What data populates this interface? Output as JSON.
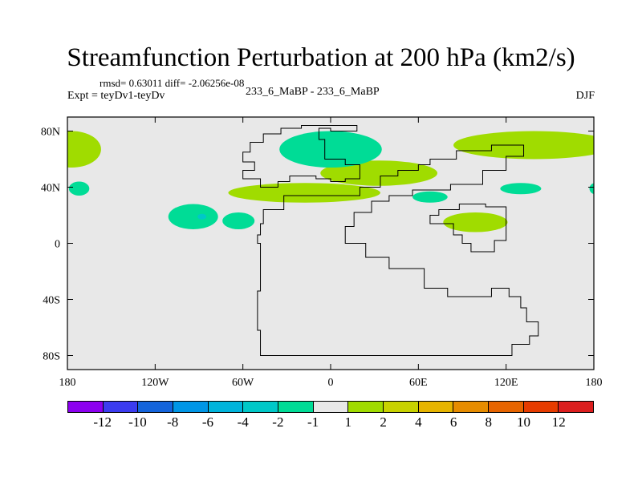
{
  "title": "Streamfunction Perturbation at 200 hPa (km2/s)",
  "stats": "rmsd= 0.63011  diff= -2.06256e-08",
  "experiment_label": "Expt = teyDv1-teyDv",
  "experiment_name": "233_6_MaBP - 233_6_MaBP",
  "season": "DJF",
  "map": {
    "lat_range": [
      -90,
      90
    ],
    "lon_range": [
      -180,
      180
    ],
    "background_color": "#e8e8e8",
    "y_ticks": [
      {
        "lat": 80,
        "label": "80N"
      },
      {
        "lat": 40,
        "label": "40N"
      },
      {
        "lat": 0,
        "label": "0"
      },
      {
        "lat": -40,
        "label": "40S"
      },
      {
        "lat": -80,
        "label": "80S"
      }
    ],
    "x_ticks": [
      {
        "lon": -180,
        "label": "180"
      },
      {
        "lon": -120,
        "label": "120W"
      },
      {
        "lon": -60,
        "label": "60W"
      },
      {
        "lon": 0,
        "label": "0"
      },
      {
        "lon": 60,
        "label": "60E"
      },
      {
        "lon": 120,
        "label": "120E"
      },
      {
        "lon": 180,
        "label": "180"
      }
    ],
    "regions": [
      {
        "name": "arctic-west-positive",
        "level": "1 to 2",
        "color": "#a0dc00",
        "lon": -177,
        "lat": 67,
        "rlon": 20,
        "rlat": 13
      },
      {
        "name": "arctic-east-positive",
        "level": "1 to 2",
        "color": "#a0dc00",
        "lon": 139,
        "lat": 70,
        "rlon": 55,
        "rlat": 10
      },
      {
        "name": "eurasia-ridge-positive",
        "level": "1 to 2",
        "color": "#a0dc00",
        "lon": 33,
        "lat": 50,
        "rlon": 40,
        "rlat": 9
      },
      {
        "name": "atlantic-band-positive",
        "level": "1 to 2",
        "color": "#a0dc00",
        "lon": -18,
        "lat": 36,
        "rlon": 52,
        "rlat": 7
      },
      {
        "name": "north-africa-arabia-positive",
        "level": "1 to 2",
        "color": "#a0dc00",
        "lon": 99,
        "lat": 15,
        "rlon": 22,
        "rlat": 7
      },
      {
        "name": "greenland-trough-negative",
        "level": "-1 to -2",
        "color": "#00dc96",
        "lon": 0,
        "lat": 67,
        "rlon": 35,
        "rlat": 13
      },
      {
        "name": "pacific-west-negative",
        "level": "-1 to -2",
        "color": "#00dc96",
        "lon": -172,
        "lat": 39,
        "rlon": 7,
        "rlat": 5
      },
      {
        "name": "east-pacific-negative",
        "level": "-1 to -2",
        "color": "#00dc96",
        "lon": -94,
        "lat": 19,
        "rlon": 17,
        "rlat": 9
      },
      {
        "name": "caribbean-negative",
        "level": "-1 to -2",
        "color": "#00dc96",
        "lon": -63,
        "lat": 16,
        "rlon": 11,
        "rlat": 6
      },
      {
        "name": "central-asia-negative",
        "level": "-1 to -2",
        "color": "#00dc96",
        "lon": 68,
        "lat": 33,
        "rlon": 12,
        "rlat": 4
      },
      {
        "name": "east-asia-negative",
        "level": "-1 to -2",
        "color": "#00dc96",
        "lon": 130,
        "lat": 39,
        "rlon": 14,
        "rlat": 4
      },
      {
        "name": "dateline-negative",
        "level": "-1 to -2",
        "color": "#00dc96",
        "lon": 181,
        "lat": 39,
        "rlon": 4,
        "rlat": 4
      },
      {
        "name": "east-pacific-core-negative",
        "level": "-2 to -4",
        "color": "#00c8c8",
        "lon": -88,
        "lat": 19,
        "rlon": 3,
        "rlat": 2
      }
    ],
    "continents": [
      {
        "name": "north-landmass",
        "points": [
          [
            -48,
            40
          ],
          [
            -48,
            46
          ],
          [
            -60,
            46
          ],
          [
            -60,
            52
          ],
          [
            -52,
            52
          ],
          [
            -52,
            58
          ],
          [
            -60,
            58
          ],
          [
            -60,
            65
          ],
          [
            -55,
            65
          ],
          [
            -55,
            72
          ],
          [
            -46,
            72
          ],
          [
            -46,
            78
          ],
          [
            -34,
            78
          ],
          [
            -34,
            82
          ],
          [
            -20,
            82
          ],
          [
            -20,
            84
          ],
          [
            18,
            84
          ],
          [
            18,
            80
          ],
          [
            0,
            80
          ],
          [
            0,
            82
          ],
          [
            -8,
            82
          ],
          [
            -8,
            74
          ],
          [
            -4,
            74
          ],
          [
            -4,
            60
          ],
          [
            10,
            60
          ],
          [
            10,
            56
          ],
          [
            20,
            56
          ],
          [
            20,
            46
          ],
          [
            10,
            46
          ],
          [
            10,
            44
          ],
          [
            0,
            44
          ],
          [
            0,
            46
          ],
          [
            -10,
            46
          ],
          [
            -10,
            48
          ],
          [
            -28,
            48
          ],
          [
            -28,
            44
          ],
          [
            -36,
            44
          ],
          [
            -36,
            40
          ]
        ]
      },
      {
        "name": "south-landmass",
        "points": [
          [
            -32,
            34
          ],
          [
            -32,
            24
          ],
          [
            -46,
            24
          ],
          [
            -46,
            14
          ],
          [
            -48,
            14
          ],
          [
            -48,
            6
          ],
          [
            -50,
            6
          ],
          [
            -50,
            0
          ],
          [
            -48,
            0
          ],
          [
            -48,
            -34
          ],
          [
            -50,
            -34
          ],
          [
            -50,
            -62
          ],
          [
            -48,
            -62
          ],
          [
            -48,
            -80
          ],
          [
            124,
            -80
          ],
          [
            124,
            -72
          ],
          [
            136,
            -72
          ],
          [
            136,
            -66
          ],
          [
            142,
            -66
          ],
          [
            142,
            -56
          ],
          [
            134,
            -56
          ],
          [
            134,
            -46
          ],
          [
            130,
            -46
          ],
          [
            130,
            -38
          ],
          [
            122,
            -38
          ],
          [
            122,
            -32
          ],
          [
            110,
            -32
          ],
          [
            110,
            -38
          ],
          [
            80,
            -38
          ],
          [
            80,
            -32
          ],
          [
            64,
            -32
          ],
          [
            64,
            -18
          ],
          [
            40,
            -18
          ],
          [
            40,
            -10
          ],
          [
            24,
            -10
          ],
          [
            24,
            0
          ],
          [
            10,
            0
          ],
          [
            10,
            12
          ],
          [
            16,
            12
          ],
          [
            16,
            22
          ],
          [
            28,
            22
          ],
          [
            28,
            30
          ],
          [
            40,
            30
          ],
          [
            40,
            34
          ],
          [
            56,
            34
          ],
          [
            56,
            38
          ],
          [
            82,
            38
          ],
          [
            82,
            42
          ],
          [
            104,
            42
          ],
          [
            104,
            52
          ],
          [
            120,
            52
          ],
          [
            120,
            62
          ],
          [
            132,
            62
          ],
          [
            132,
            70
          ],
          [
            110,
            70
          ],
          [
            110,
            66
          ],
          [
            86,
            66
          ],
          [
            86,
            60
          ],
          [
            68,
            60
          ],
          [
            68,
            56
          ],
          [
            60,
            56
          ],
          [
            60,
            52
          ],
          [
            46,
            52
          ],
          [
            46,
            48
          ],
          [
            34,
            48
          ],
          [
            34,
            40
          ],
          [
            20,
            40
          ],
          [
            20,
            34
          ]
        ]
      },
      {
        "name": "asia-coast-fragment",
        "points": [
          [
            106,
            26
          ],
          [
            120,
            26
          ],
          [
            120,
            2
          ],
          [
            112,
            2
          ],
          [
            112,
            -6
          ],
          [
            96,
            -6
          ],
          [
            96,
            0
          ],
          [
            90,
            0
          ],
          [
            90,
            6
          ],
          [
            84,
            6
          ],
          [
            84,
            14
          ],
          [
            68,
            14
          ],
          [
            68,
            20
          ],
          [
            74,
            20
          ],
          [
            74,
            24
          ],
          [
            88,
            24
          ],
          [
            88,
            28
          ],
          [
            106,
            28
          ]
        ]
      }
    ]
  },
  "colorbar": {
    "colors": [
      "#8c00f0",
      "#3c3cf0",
      "#1464dc",
      "#0096e6",
      "#00b4dc",
      "#00c8c8",
      "#00dc96",
      "#e8e8e8",
      "#a0dc00",
      "#c8d200",
      "#e6b400",
      "#e68c00",
      "#e66400",
      "#e63c00",
      "#dc1e1e"
    ],
    "labels": [
      "-12",
      "-10",
      "-8",
      "-6",
      "-4",
      "-2",
      "-1",
      "1",
      "2",
      "4",
      "6",
      "8",
      "10",
      "12"
    ]
  }
}
